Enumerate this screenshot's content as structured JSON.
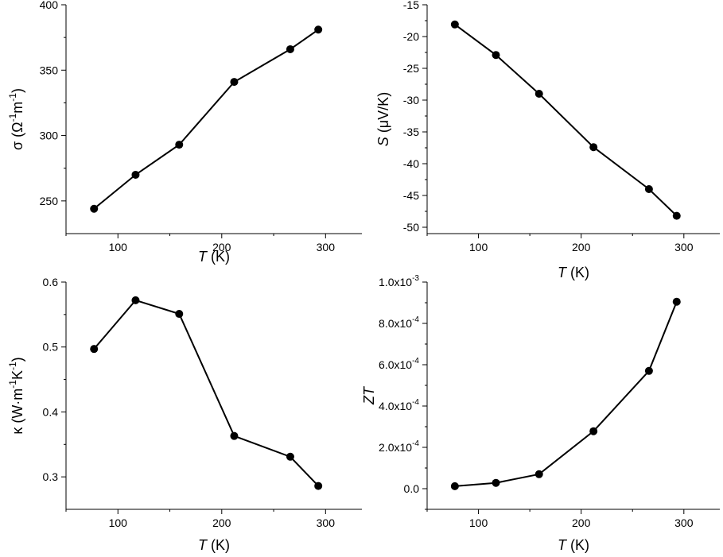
{
  "chart_data": [
    {
      "type": "line",
      "panel": "top-left",
      "xlabel": {
        "italic": "T",
        "rest": " (K)"
      },
      "ylabel": {
        "prefix": "σ (Ω",
        "sup1": "-1",
        "mid": "m",
        "sup2": "-1",
        "suffix": ")"
      },
      "xlim": [
        50,
        335
      ],
      "ylim": [
        225,
        400
      ],
      "xticks": [
        100,
        200,
        300
      ],
      "xminor": [
        50,
        150,
        250
      ],
      "yticks": [
        250,
        300,
        350,
        400
      ],
      "yminor": [
        275,
        325,
        375
      ],
      "ytick_labels": [
        "250",
        "300",
        "350",
        "400"
      ],
      "series": [
        {
          "x": [
            77,
            117,
            159,
            212,
            266,
            293
          ],
          "y": [
            244,
            270,
            293,
            341,
            366,
            381
          ]
        }
      ]
    },
    {
      "type": "line",
      "panel": "top-right",
      "xlabel": {
        "italic": "T",
        "rest": " (K)"
      },
      "ylabel": {
        "italic": "S",
        "rest": " (μV/K)"
      },
      "xlim": [
        50,
        335
      ],
      "ylim": [
        -51,
        -15
      ],
      "xticks": [
        100,
        200,
        300
      ],
      "xminor": [
        50,
        150,
        250
      ],
      "yticks": [
        -50,
        -45,
        -40,
        -35,
        -30,
        -25,
        -20,
        -15
      ],
      "yminor": [
        -47.5,
        -42.5,
        -37.5,
        -32.5,
        -27.5,
        -22.5,
        -17.5
      ],
      "ytick_labels": [
        "-50",
        "-45",
        "-40",
        "-35",
        "-30",
        "-25",
        "-20",
        "-15"
      ],
      "series": [
        {
          "x": [
            77,
            117,
            159,
            212,
            266,
            293
          ],
          "y": [
            -18.1,
            -22.9,
            -29.0,
            -37.4,
            -44.0,
            -48.2
          ]
        }
      ]
    },
    {
      "type": "line",
      "panel": "bottom-left",
      "xlabel": {
        "italic": "T",
        "rest": " (K)"
      },
      "ylabel": {
        "prefix": "κ (W·m",
        "sup1": "-1",
        "mid": "K",
        "sup2": "-1",
        "suffix": ")"
      },
      "xlim": [
        50,
        335
      ],
      "ylim": [
        0.25,
        0.6
      ],
      "xticks": [
        100,
        200,
        300
      ],
      "xminor": [
        50,
        150,
        250
      ],
      "yticks": [
        0.3,
        0.4,
        0.5,
        0.6
      ],
      "yminor": [
        0.35,
        0.45,
        0.55
      ],
      "ytick_labels": [
        "0.3",
        "0.4",
        "0.5",
        "0.6"
      ],
      "series": [
        {
          "x": [
            77,
            117,
            159,
            212,
            266,
            293
          ],
          "y": [
            0.497,
            0.572,
            0.551,
            0.363,
            0.331,
            0.286
          ]
        }
      ]
    },
    {
      "type": "line",
      "panel": "bottom-right",
      "xlabel": {
        "italic": "T",
        "rest": " (K)"
      },
      "ylabel": {
        "italic": "ZT",
        "rest": ""
      },
      "xlim": [
        50,
        335
      ],
      "ylim": [
        -0.0001,
        0.001
      ],
      "xticks": [
        100,
        200,
        300
      ],
      "xminor": [
        50,
        150,
        250
      ],
      "yticks": [
        0,
        0.0002,
        0.0004,
        0.0006,
        0.0008,
        0.001
      ],
      "yminor": [
        -0.0001,
        0.0001,
        0.0003,
        0.0005,
        0.0007,
        0.0009
      ],
      "ytick_labels": [
        {
          "base": "0.0",
          "exp": ""
        },
        {
          "base": "2.0x10",
          "exp": "-4"
        },
        {
          "base": "4.0x10",
          "exp": "-4"
        },
        {
          "base": "6.0x10",
          "exp": "-4"
        },
        {
          "base": "8.0x10",
          "exp": "-4"
        },
        {
          "base": "1.0x10",
          "exp": "-3"
        }
      ],
      "series": [
        {
          "x": [
            77,
            117,
            159,
            212,
            266,
            293
          ],
          "y": [
            1.2e-05,
            2.8e-05,
            7e-05,
            0.000278,
            0.00057,
            0.000905
          ]
        }
      ]
    }
  ]
}
